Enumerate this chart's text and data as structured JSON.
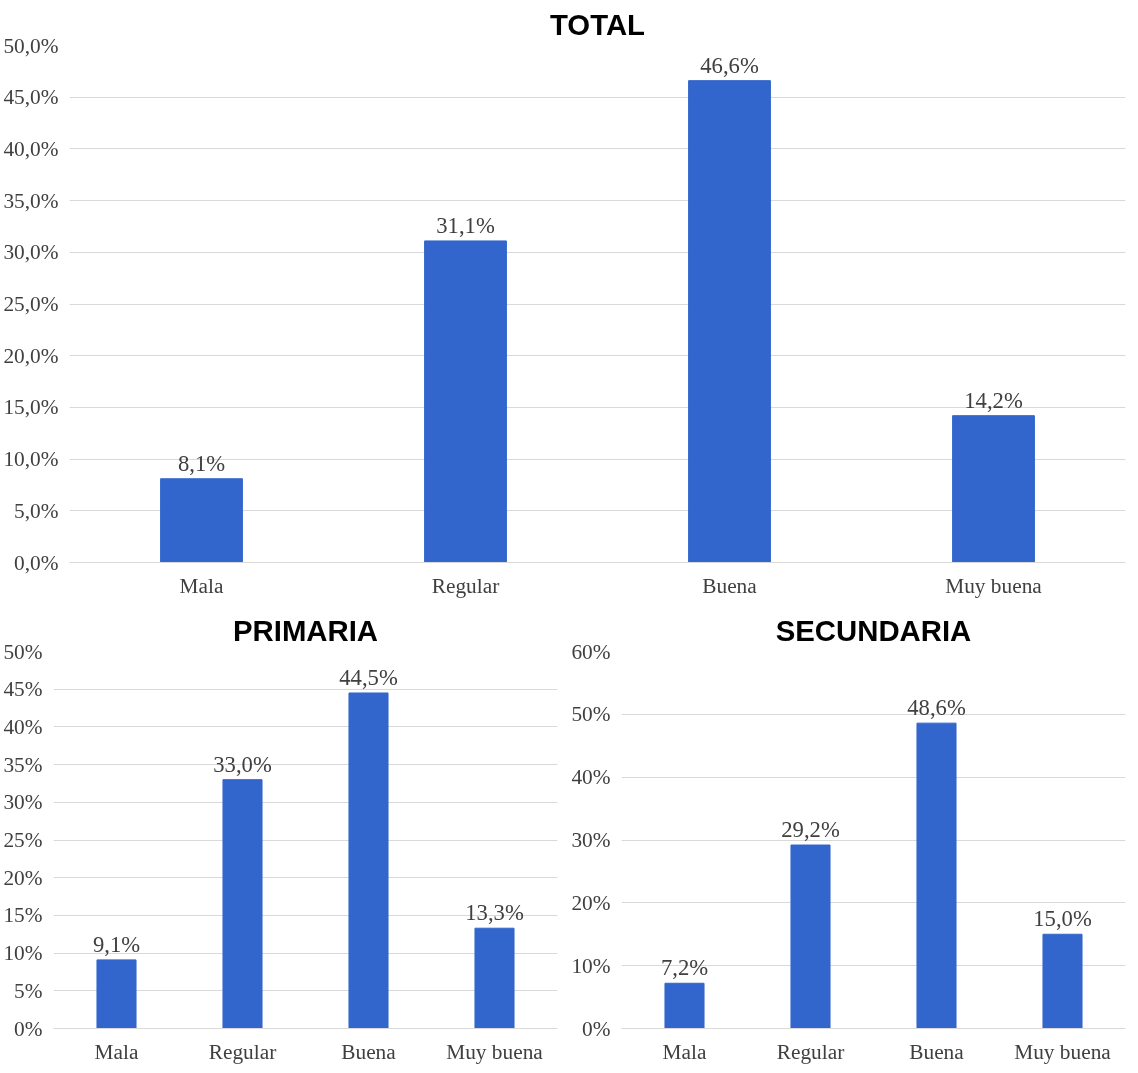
{
  "chart_data": [
    {
      "type": "bar",
      "title": "TOTAL",
      "categories": [
        "Mala",
        "Regular",
        "Buena",
        "Muy buena"
      ],
      "values": [
        8.1,
        31.1,
        46.6,
        14.2
      ],
      "value_labels": [
        "8,1%",
        "31,1%",
        "46,6%",
        "14,2%"
      ],
      "color": "#3366cc",
      "ylim": [
        0,
        50
      ],
      "yticks": [
        {
          "value": 0,
          "label": "0,0%"
        },
        {
          "value": 5,
          "label": "5,0%"
        },
        {
          "value": 10,
          "label": "10,0%"
        },
        {
          "value": 15,
          "label": "15,0%"
        },
        {
          "value": 20,
          "label": "20,0%"
        },
        {
          "value": 25,
          "label": "25,0%"
        },
        {
          "value": 30,
          "label": "30,0%"
        },
        {
          "value": 35,
          "label": "35,0%"
        },
        {
          "value": 40,
          "label": "40,0%"
        },
        {
          "value": 45,
          "label": "45,0%"
        },
        {
          "value": 50,
          "label": "50,0%"
        }
      ],
      "grid": "y",
      "legend": false
    },
    {
      "type": "bar",
      "title": "PRIMARIA",
      "categories": [
        "Mala",
        "Regular",
        "Buena",
        "Muy buena"
      ],
      "values": [
        9.1,
        33.0,
        44.5,
        13.3
      ],
      "value_labels": [
        "9,1%",
        "33,0%",
        "44,5%",
        "13,3%"
      ],
      "color": "#3366cc",
      "ylim": [
        0,
        50
      ],
      "yticks": [
        {
          "value": 0,
          "label": "0%"
        },
        {
          "value": 5,
          "label": "5%"
        },
        {
          "value": 10,
          "label": "10%"
        },
        {
          "value": 15,
          "label": "15%"
        },
        {
          "value": 20,
          "label": "20%"
        },
        {
          "value": 25,
          "label": "25%"
        },
        {
          "value": 30,
          "label": "30%"
        },
        {
          "value": 35,
          "label": "35%"
        },
        {
          "value": 40,
          "label": "40%"
        },
        {
          "value": 45,
          "label": "45%"
        },
        {
          "value": 50,
          "label": "50%"
        }
      ],
      "grid": "y",
      "legend": false
    },
    {
      "type": "bar",
      "title": "SECUNDARIA",
      "categories": [
        "Mala",
        "Regular",
        "Buena",
        "Muy buena"
      ],
      "values": [
        7.2,
        29.2,
        48.6,
        15.0
      ],
      "value_labels": [
        "7,2%",
        "29,2%",
        "48,6%",
        "15,0%"
      ],
      "color": "#3366cc",
      "ylim": [
        0,
        60
      ],
      "yticks": [
        {
          "value": 0,
          "label": "0%"
        },
        {
          "value": 10,
          "label": "10%"
        },
        {
          "value": 20,
          "label": "20%"
        },
        {
          "value": 30,
          "label": "30%"
        },
        {
          "value": 40,
          "label": "40%"
        },
        {
          "value": 50,
          "label": "50%"
        },
        {
          "value": 60,
          "label": "60%"
        }
      ],
      "grid": "y",
      "legend": false
    }
  ]
}
